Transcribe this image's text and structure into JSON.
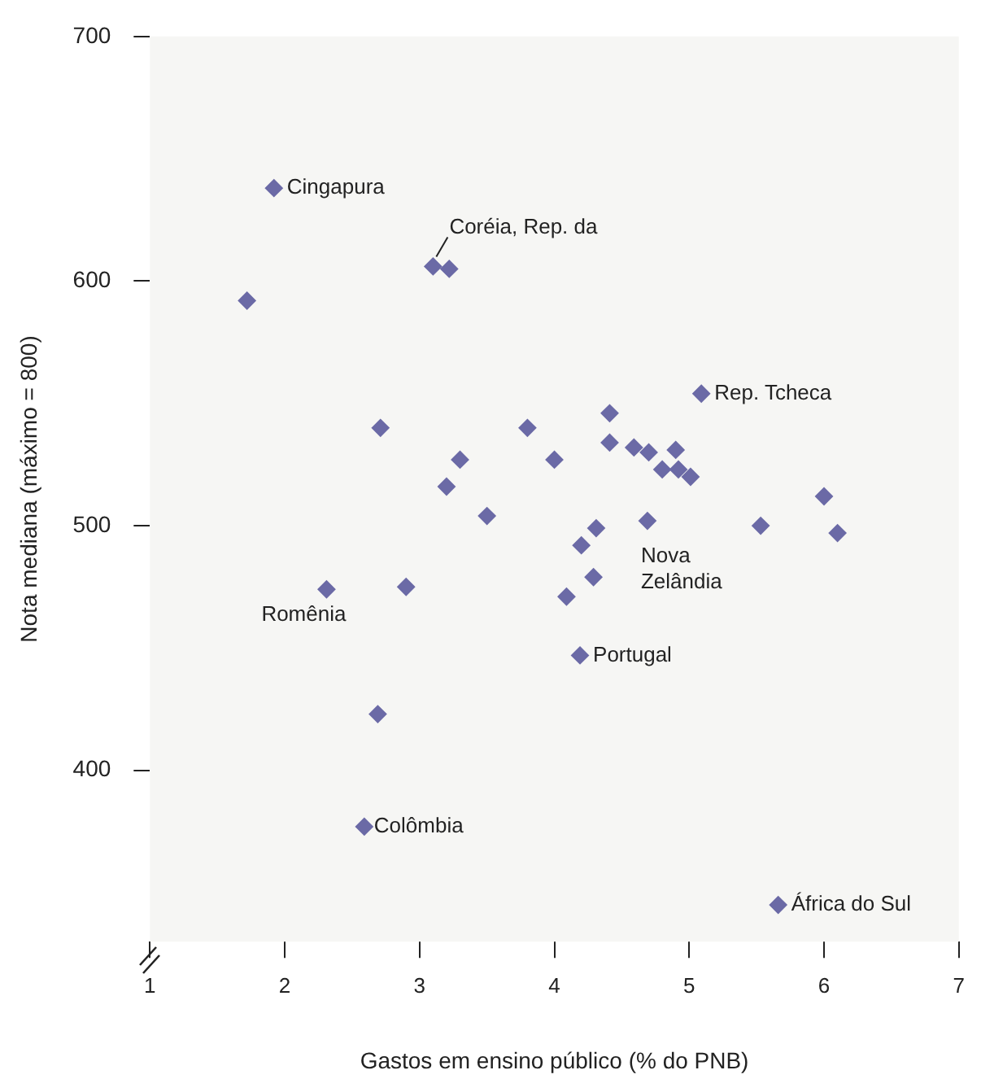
{
  "chart_data": {
    "type": "scatter",
    "xlabel": "Gastos em ensino público (% do PNB)",
    "ylabel": "Nota mediana (máximo = 800)",
    "xlim": [
      1,
      7
    ],
    "xticks": [
      1,
      2,
      3,
      4,
      5,
      6,
      7
    ],
    "ylim": [
      330,
      700
    ],
    "yticks": [
      400,
      500,
      600,
      700
    ],
    "grid": false,
    "legend": false,
    "marker": "diamond",
    "series": [
      {
        "color": "#6b6aa6",
        "x": [
          1.92,
          3.1,
          3.22,
          1.72,
          2.71,
          3.3,
          3.2,
          3.5,
          3.8,
          2.31,
          2.9,
          2.69,
          2.59,
          5.09,
          4.41,
          4.41,
          4.0,
          4.59,
          4.7,
          4.9,
          4.8,
          4.92,
          5.01,
          6.0,
          6.1,
          5.53,
          4.69,
          4.31,
          4.2,
          4.29,
          4.09,
          4.19,
          5.66
        ],
        "values": [
          638,
          606,
          605,
          592,
          540,
          527,
          516,
          504,
          540,
          474,
          475,
          423,
          377,
          554,
          546,
          534,
          527,
          532,
          530,
          531,
          523,
          523,
          520,
          512,
          497,
          500,
          502,
          499,
          492,
          479,
          471,
          447,
          345
        ]
      }
    ],
    "annotations": [
      {
        "text": "Cingapura",
        "x": 1.92,
        "y": 638
      },
      {
        "text": "Coréia, Rep. da",
        "x": 3.1,
        "y": 606
      },
      {
        "text": "Rep. Tcheca",
        "x": 5.09,
        "y": 554
      },
      {
        "text": "Nova Zelândia",
        "x": 4.69,
        "y": 502
      },
      {
        "text": "Romênia",
        "x": 2.31,
        "y": 474
      },
      {
        "text": "Portugal",
        "x": 4.19,
        "y": 447
      },
      {
        "text": "Colômbia",
        "x": 2.59,
        "y": 377
      },
      {
        "text": "África do Sul",
        "x": 5.66,
        "y": 345
      }
    ]
  }
}
